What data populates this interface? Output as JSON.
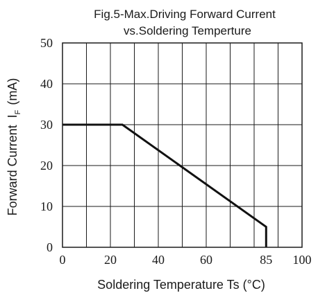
{
  "chart_data": {
    "type": "line",
    "title": "Fig.5-Max.Driving Forward Current",
    "subtitle": "vs.Soldering Temperture",
    "xlabel": "Soldering Temperature Ts (°C)",
    "ylabel_main": "Forward Current",
    "ylabel_symbol": "I",
    "ylabel_subscript": "F",
    "ylabel_unit": "(mA)",
    "xlim": [
      0,
      100
    ],
    "ylim": [
      0,
      50
    ],
    "x_tick_labels": [
      {
        "value": 0,
        "label": "0"
      },
      {
        "value": 20,
        "label": "20"
      },
      {
        "value": 40,
        "label": "40"
      },
      {
        "value": 60,
        "label": "60"
      },
      {
        "value": 85,
        "label": "85"
      },
      {
        "value": 100,
        "label": "100"
      }
    ],
    "y_tick_labels": [
      {
        "value": 0,
        "label": "0"
      },
      {
        "value": 10,
        "label": "10"
      },
      {
        "value": 20,
        "label": "20"
      },
      {
        "value": 30,
        "label": "30"
      },
      {
        "value": 40,
        "label": "40"
      },
      {
        "value": 50,
        "label": "50"
      }
    ],
    "x_grid": [
      0,
      10,
      20,
      30,
      40,
      50,
      60,
      70,
      80,
      90,
      100
    ],
    "y_grid": [
      0,
      10,
      20,
      30,
      40,
      50
    ],
    "grid": true,
    "legend": "none",
    "series": [
      {
        "color": "#111111",
        "points": [
          {
            "x": 0,
            "y": 30
          },
          {
            "x": 25,
            "y": 30
          },
          {
            "x": 85,
            "y": 5
          },
          {
            "x": 85,
            "y": 0
          }
        ]
      }
    ]
  }
}
